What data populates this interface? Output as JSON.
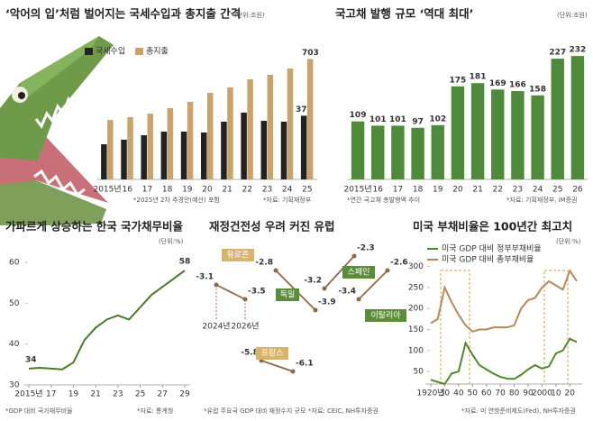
{
  "chart_data": [
    {
      "type": "bar",
      "title": "‘악어의 입’처럼 벌어지는 국세수입과 총지출 간격",
      "unit": "(단위:조원)",
      "categories": [
        "2015년",
        "16",
        "17",
        "18",
        "19",
        "20",
        "21",
        "22",
        "23",
        "24",
        "25"
      ],
      "series": [
        {
          "name": "국세수입",
          "color": "#222222",
          "values": [
            205,
            232,
            258,
            279,
            279,
            274,
            337,
            390,
            342,
            337,
            372
          ]
        },
        {
          "name": "총지출",
          "color": "#c9a36b",
          "values": [
            347,
            363,
            384,
            416,
            453,
            505,
            537,
            584,
            611,
            647,
            703
          ]
        }
      ],
      "notes": [
        "*2025년 2차 추경안(예산) 포함",
        "*자료: 기획재정부"
      ]
    },
    {
      "type": "bar",
      "title": "국고채 발행 규모 ‘역대 최대’",
      "unit": "(단위:조원)",
      "categories": [
        "2015년",
        "16",
        "17",
        "18",
        "19",
        "20",
        "21",
        "22",
        "23",
        "24",
        "25",
        "26"
      ],
      "values": [
        109,
        101,
        101,
        97,
        102,
        175,
        181,
        169,
        166,
        158,
        227,
        232
      ],
      "color": "#4f8a3a",
      "notes": [
        "*연간 국고채 총발행액 추이",
        "*자료: 기획재정부, iM증권"
      ]
    },
    {
      "type": "line",
      "title": "가파르게 상승하는 한국 국가채무비율",
      "unit": "(단위:%)",
      "x": [
        2015,
        2016,
        2017,
        2018,
        2019,
        2020,
        2021,
        2022,
        2023,
        2024,
        2025,
        2026,
        2027,
        2028,
        2029
      ],
      "series": [
        {
          "name": null,
          "color": "#4a7a2c",
          "values": [
            34,
            34.2,
            34,
            33.8,
            35.5,
            41,
            44,
            46,
            47,
            46,
            49,
            52,
            54,
            56,
            58
          ]
        }
      ],
      "xlim": [
        2015,
        2029
      ],
      "xticks": [
        {
          "value": 2015,
          "label": "2015년"
        },
        {
          "value": 2017,
          "label": "17"
        },
        {
          "value": 2019,
          "label": "19"
        },
        {
          "value": 2021,
          "label": "21"
        },
        {
          "value": 2023,
          "label": "23"
        },
        {
          "value": 2025,
          "label": "25"
        },
        {
          "value": 2027,
          "label": "27"
        },
        {
          "value": 2029,
          "label": "29"
        }
      ],
      "ylim": [
        30,
        60
      ],
      "yticks": [
        30,
        40,
        50,
        60
      ],
      "notes": [
        "*GDP 대비 국가채무비율",
        "*자료: 통계청"
      ]
    },
    {
      "type": "slope",
      "title": "재정건전성 우려 커진 유럽",
      "x": [
        "2024년",
        "2026년"
      ],
      "line_color": "#8b6a4a",
      "series": [
        {
          "name": "유로존",
          "color": "#d8b46a",
          "values": [
            -3.1,
            -3.5
          ]
        },
        {
          "name": "독일",
          "color": "#5a8c3a",
          "values": [
            -2.8,
            -3.9
          ]
        },
        {
          "name": "스페인",
          "color": "#5a8c3a",
          "values": [
            -3.2,
            -2.3
          ]
        },
        {
          "name": "이탈리아",
          "color": "#5a8c3a",
          "values": [
            -3.4,
            -2.6
          ]
        },
        {
          "name": "프랑스",
          "color": "#d8b46a",
          "values": [
            -5.8,
            -6.1
          ]
        }
      ],
      "notes": [
        "*유럽 주요국 GDP 대비 재정수지 규모",
        "*자료: CEIC, NH투자증권"
      ]
    },
    {
      "type": "line",
      "title": "미국 부채비율은 100년간 최고치",
      "unit": "(단위:%)",
      "x": [
        1920,
        1925,
        1930,
        1935,
        1940,
        1945,
        1950,
        1955,
        1960,
        1965,
        1970,
        1975,
        1980,
        1985,
        1990,
        1995,
        2000,
        2005,
        2010,
        2015,
        2020,
        2025
      ],
      "series": [
        {
          "name": "미국 GDP 대비 정부부채비율",
          "color": "#4f8a2a",
          "values": [
            30,
            25,
            20,
            45,
            50,
            118,
            90,
            65,
            55,
            45,
            37,
            33,
            32,
            42,
            55,
            65,
            57,
            62,
            93,
            100,
            128,
            120
          ]
        },
        {
          "name": "미국 GDP 대비 총부채비율",
          "color": "#b5895a",
          "values": [
            165,
            175,
            250,
            215,
            185,
            160,
            145,
            150,
            150,
            155,
            155,
            155,
            160,
            200,
            220,
            225,
            250,
            265,
            255,
            245,
            290,
            265
          ]
        }
      ],
      "xlim": [
        1920,
        2025
      ],
      "xticks": [
        {
          "value": 1920,
          "label": "1920년"
        },
        {
          "value": 1930,
          "label": "30"
        },
        {
          "value": 1940,
          "label": "40"
        },
        {
          "value": 1950,
          "label": "50"
        },
        {
          "value": 1960,
          "label": "60"
        },
        {
          "value": 1970,
          "label": "70"
        },
        {
          "value": 1980,
          "label": "80"
        },
        {
          "value": 1990,
          "label": "90"
        },
        2000,
        {
          "value": 2010,
          "label": "10"
        },
        {
          "value": 2020,
          "label": "20"
        }
      ],
      "ylim": [
        20,
        310
      ],
      "yticks": [
        50,
        100,
        150,
        200,
        250,
        300
      ],
      "notes": [
        "*자료: 미 연방준비제도(Fed), NH투자증권"
      ]
    }
  ]
}
